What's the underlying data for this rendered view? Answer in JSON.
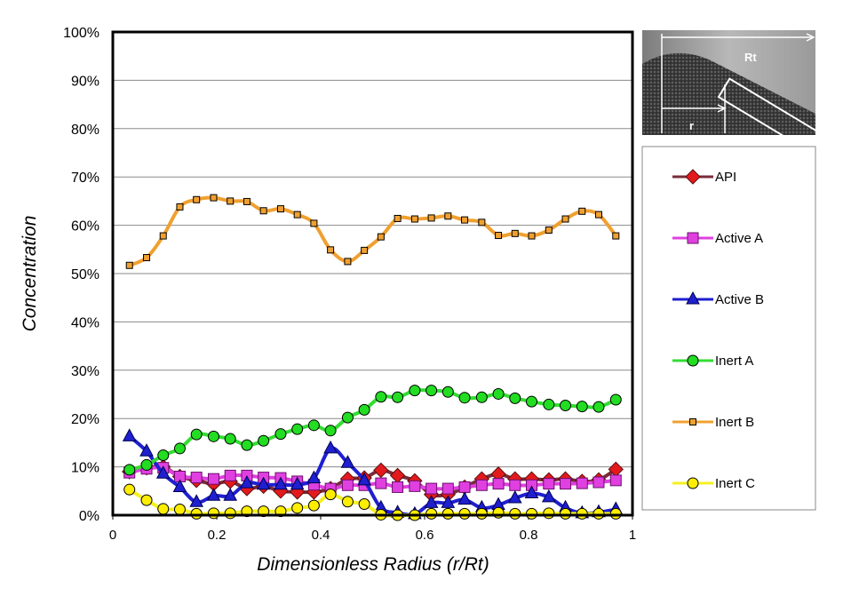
{
  "chart_data": {
    "type": "line",
    "title": "",
    "xlabel": "Dimensionless Radius (r/Rt)",
    "ylabel": "Concentration",
    "xlim": [
      0,
      1
    ],
    "ylim": [
      0,
      100
    ],
    "x_ticks": [
      "0",
      "0.2",
      "0.4",
      "0.6",
      "0.8",
      "1"
    ],
    "y_ticks": [
      "0%",
      "10%",
      "20%",
      "30%",
      "40%",
      "50%",
      "60%",
      "70%",
      "80%",
      "90%",
      "100%"
    ],
    "grid": true,
    "legend_position": "right",
    "x": [
      0.032,
      0.065,
      0.097,
      0.129,
      0.161,
      0.194,
      0.226,
      0.258,
      0.29,
      0.323,
      0.355,
      0.387,
      0.419,
      0.452,
      0.484,
      0.516,
      0.548,
      0.581,
      0.613,
      0.645,
      0.677,
      0.71,
      0.742,
      0.774,
      0.806,
      0.839,
      0.871,
      0.903,
      0.935,
      0.968
    ],
    "series": [
      {
        "name": "API",
        "color": "#7a2c3a",
        "marker": "diamond",
        "marker_color": "#e31a1c",
        "values": [
          9,
          9.8,
          10,
          8,
          7.2,
          6.5,
          7,
          5.5,
          6,
          5,
          4.8,
          4.8,
          5.5,
          7.5,
          7.7,
          9.3,
          8.2,
          7.1,
          4.3,
          4.3,
          5.8,
          7.5,
          8.5,
          7.5,
          7.5,
          7.3,
          7.5,
          7,
          7.3,
          9.5
        ]
      },
      {
        "name": "Active A",
        "color": "#e040e0",
        "marker": "square",
        "marker_color": "#e040e0",
        "values": [
          8.8,
          9.6,
          9.8,
          8,
          7.8,
          7.5,
          8.2,
          8.2,
          7.8,
          7.7,
          7,
          6.3,
          5.5,
          6.2,
          6.2,
          6.6,
          5.8,
          6,
          5.5,
          5.5,
          5.8,
          6.2,
          6.5,
          6.2,
          6.2,
          6.5,
          6.5,
          6.6,
          6.8,
          7.2
        ]
      },
      {
        "name": "Active B",
        "color": "#1f1fd0",
        "marker": "triangle",
        "marker_color": "#1f1fd0",
        "values": [
          16.3,
          13.2,
          8.6,
          5.8,
          2.7,
          4,
          4,
          6.6,
          6.3,
          6.3,
          6.3,
          7.6,
          13.8,
          10.8,
          7.2,
          1.5,
          0.5,
          0.2,
          2.5,
          2.5,
          3.2,
          1.5,
          2.1,
          3.5,
          4.5,
          3.7,
          1.5,
          0.4,
          0.6,
          1.2
        ]
      },
      {
        "name": "Inert A",
        "color": "#33dd33",
        "marker": "circle",
        "marker_color": "#22dd22",
        "values": [
          9.4,
          10.4,
          12.4,
          13.8,
          16.7,
          16.3,
          15.8,
          14.5,
          15.4,
          16.8,
          17.8,
          18.6,
          17.5,
          20.2,
          21.8,
          24.5,
          24.4,
          25.8,
          25.8,
          25.5,
          24.3,
          24.4,
          25.1,
          24.2,
          23.5,
          22.9,
          22.7,
          22.5,
          22.4,
          23.9
        ]
      },
      {
        "name": "Inert B",
        "color": "#f0a030",
        "marker": "square-small",
        "marker_color": "#f0a030",
        "values": [
          51.7,
          53.3,
          57.8,
          63.8,
          65.3,
          65.7,
          65,
          64.9,
          63,
          63.4,
          62.2,
          60.4,
          54.9,
          52.5,
          54.8,
          57.6,
          61.4,
          61.3,
          61.5,
          61.9,
          61.1,
          60.6,
          57.9,
          58.3,
          57.8,
          59,
          61.3,
          62.9,
          62.2,
          57.8
        ]
      },
      {
        "name": "Inert C",
        "color": "#f5f020",
        "marker": "circle",
        "marker_color": "#ffee00",
        "values": [
          5.3,
          3.1,
          1.3,
          1.2,
          0.3,
          0.4,
          0.4,
          0.8,
          0.8,
          0.8,
          1.5,
          2,
          4.3,
          2.8,
          2.3,
          0.1,
          0,
          0,
          0.3,
          0.3,
          0.3,
          0.3,
          0.5,
          0.3,
          0.3,
          0.4,
          0.3,
          0.3,
          0.3,
          0.3
        ]
      }
    ],
    "inset": {
      "label_rt": "Rt",
      "label_r": "r"
    }
  }
}
